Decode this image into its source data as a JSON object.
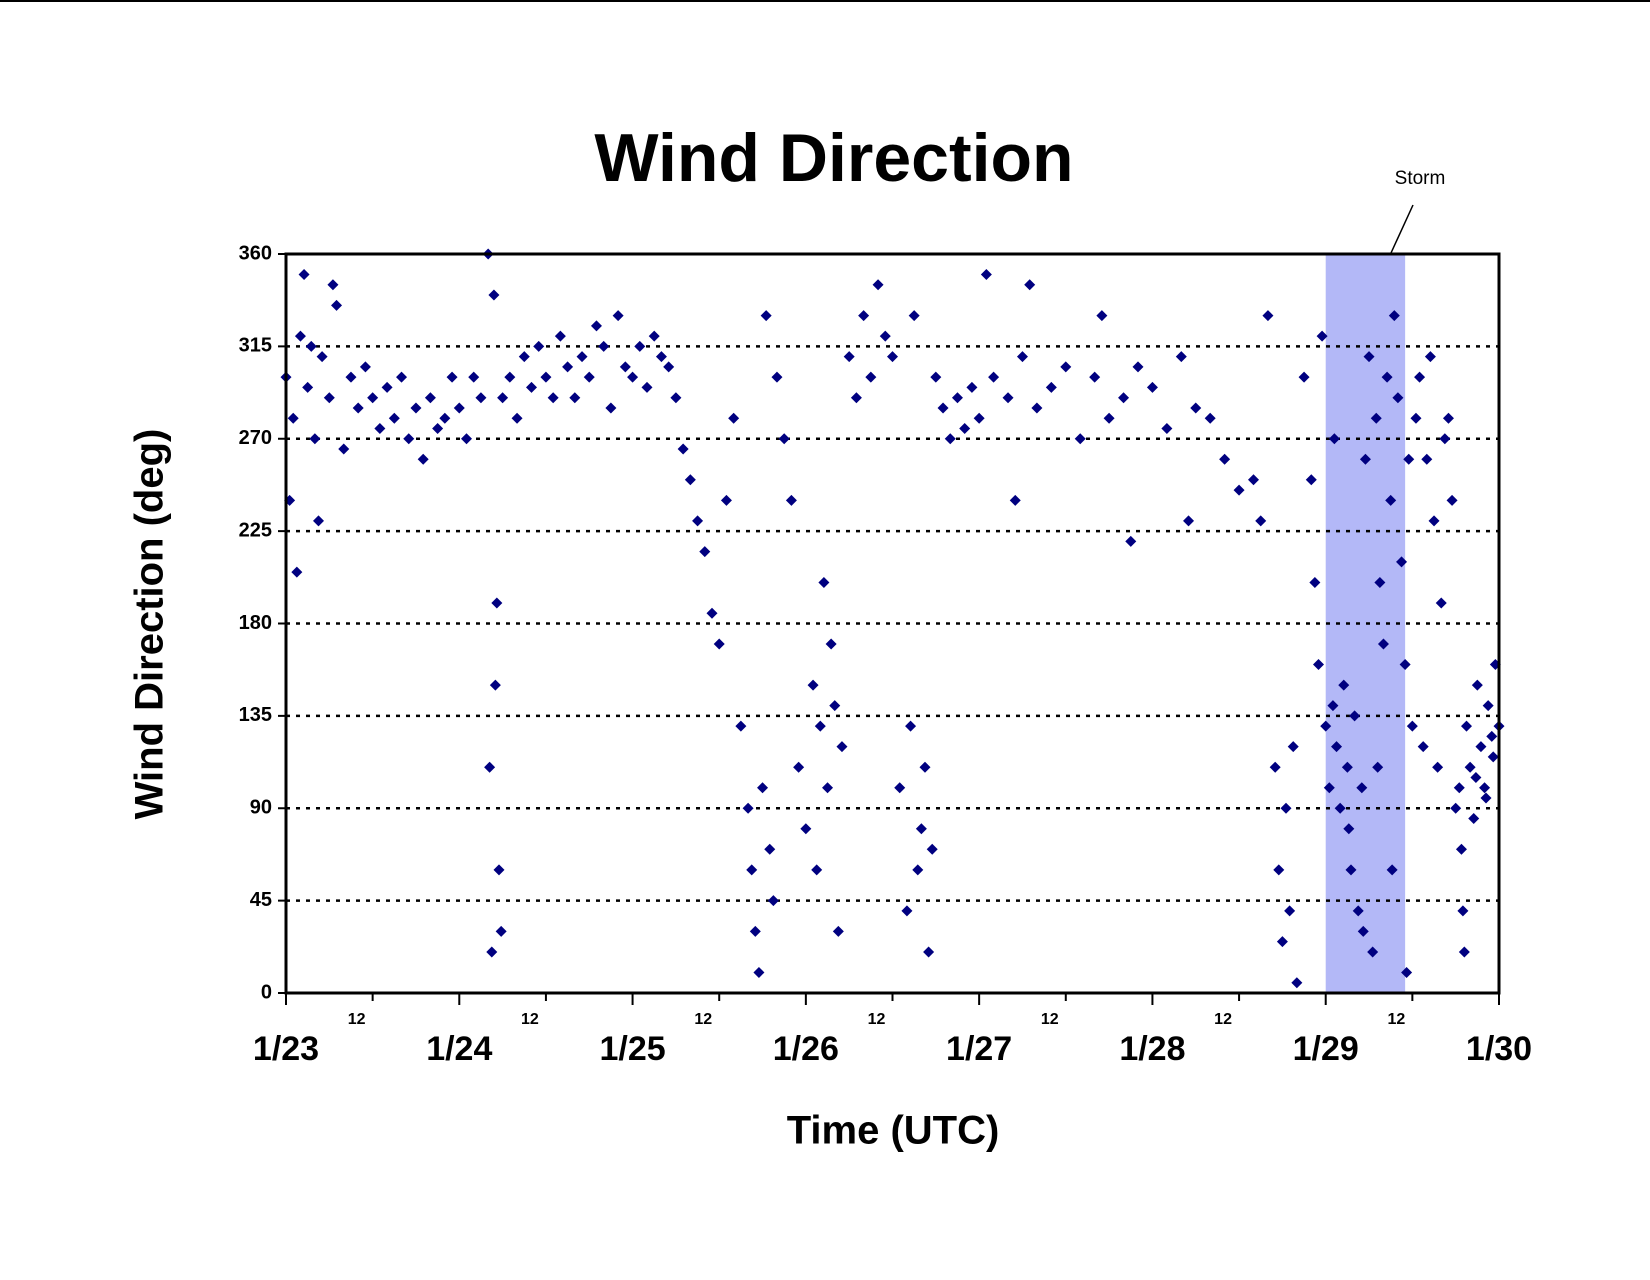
{
  "chart_data": {
    "type": "scatter",
    "title": "Wind Direction",
    "x_label": "Time (UTC)",
    "y_label": "Wind Direction (deg)",
    "color": "#000080",
    "marker": "diamond",
    "grid": true,
    "xlim": [
      0,
      168
    ],
    "ylim": [
      0,
      360
    ],
    "yticks": [
      0,
      45,
      90,
      135,
      180,
      225,
      270,
      315,
      360
    ],
    "xticks": [
      {
        "value": 0,
        "label": "1/23"
      },
      12,
      {
        "value": 24,
        "label": "1/24"
      },
      {
        "value": 36,
        "label": "12"
      },
      {
        "value": 48,
        "label": "1/25"
      },
      {
        "value": 60,
        "label": "12"
      },
      {
        "value": 72,
        "label": "1/26"
      },
      {
        "value": 84,
        "label": "12"
      },
      {
        "value": 96,
        "label": "1/27"
      },
      {
        "value": 108,
        "label": "12"
      },
      {
        "value": 120,
        "label": "1/28"
      },
      {
        "value": 132,
        "label": "12"
      },
      {
        "value": 144,
        "label": "1/29"
      },
      {
        "value": 156,
        "label": "12"
      },
      {
        "value": 168,
        "label": "1/30"
      }
    ],
    "storm": {
      "label": "Storm",
      "xrange": [
        144,
        155
      ],
      "color": "#b3b8f7"
    },
    "x": [
      0,
      1,
      2,
      3,
      4,
      5,
      6,
      7,
      8,
      9,
      10,
      11,
      12,
      13,
      14,
      15,
      16,
      17,
      18,
      19,
      20,
      21,
      22,
      23,
      0.5,
      2.5,
      4.5,
      6.5,
      1.5,
      3.5,
      24,
      25,
      26,
      27,
      28,
      28.5,
      29,
      29.5,
      28.2,
      29.2,
      28.8,
      29.8,
      30,
      31,
      32,
      33,
      34,
      35,
      36,
      37,
      38,
      39,
      40,
      41,
      42,
      43,
      44,
      45,
      46,
      47,
      48,
      49,
      50,
      51,
      52,
      53,
      54,
      55,
      56,
      57,
      58,
      59,
      60,
      61,
      62,
      63,
      64,
      64.5,
      65,
      65.5,
      66,
      66.5,
      67,
      67.5,
      68,
      69,
      70,
      71,
      72,
      73,
      73.5,
      74,
      74.5,
      75,
      75.5,
      76,
      76.5,
      77,
      78,
      79,
      80,
      81,
      82,
      83,
      84,
      85,
      86,
      87,
      88,
      89,
      86.5,
      87.5,
      88.5,
      89.5,
      90,
      91,
      92,
      93,
      94,
      95,
      96,
      98,
      100,
      102,
      104,
      106,
      108,
      110,
      112,
      114,
      116,
      118,
      120,
      122,
      124,
      126,
      128,
      130,
      132,
      134,
      135,
      136,
      137,
      137.5,
      138,
      138.5,
      139,
      139.5,
      140,
      141,
      142,
      142.5,
      143,
      143.5,
      101,
      113,
      97,
      125,
      103,
      117,
      144,
      144.5,
      145,
      145.5,
      146,
      146.5,
      147,
      147.5,
      148,
      148.5,
      149,
      149.5,
      150,
      150.5,
      151,
      151.5,
      152,
      152.5,
      153,
      153.5,
      154,
      154.5,
      155,
      155.5,
      145.2,
      147.2,
      149.2,
      151.2,
      153.2,
      155.2,
      156,
      156.5,
      157,
      157.5,
      158,
      158.5,
      159,
      159.5,
      160,
      161,
      162,
      162.5,
      163,
      163.5,
      164,
      164.5,
      165,
      165.5,
      166,
      166.5,
      167,
      167.5,
      168,
      160.5,
      161.5,
      163.2,
      164.8,
      166.2,
      167.2,
      162.8
    ],
    "values": [
      300,
      280,
      320,
      295,
      270,
      310,
      290,
      335,
      265,
      300,
      285,
      305,
      290,
      275,
      295,
      280,
      300,
      270,
      285,
      260,
      290,
      275,
      280,
      300,
      240,
      350,
      230,
      345,
      205,
      315,
      285,
      270,
      300,
      290,
      360,
      20,
      150,
      60,
      110,
      190,
      340,
      30,
      290,
      300,
      280,
      310,
      295,
      315,
      300,
      290,
      320,
      305,
      290,
      310,
      300,
      325,
      315,
      285,
      330,
      305,
      300,
      315,
      295,
      320,
      310,
      305,
      290,
      265,
      250,
      230,
      215,
      185,
      170,
      240,
      280,
      130,
      90,
      60,
      30,
      10,
      100,
      330,
      70,
      45,
      300,
      270,
      240,
      110,
      80,
      150,
      60,
      130,
      200,
      100,
      170,
      140,
      30,
      120,
      310,
      290,
      330,
      300,
      345,
      320,
      310,
      100,
      40,
      330,
      80,
      20,
      130,
      60,
      110,
      70,
      300,
      285,
      270,
      290,
      275,
      295,
      280,
      300,
      290,
      310,
      285,
      295,
      305,
      270,
      300,
      280,
      290,
      305,
      295,
      275,
      310,
      285,
      280,
      260,
      245,
      250,
      230,
      330,
      110,
      60,
      25,
      90,
      40,
      120,
      5,
      300,
      250,
      200,
      160,
      320,
      240,
      330,
      350,
      230,
      345,
      220,
      130,
      100,
      140,
      120,
      90,
      150,
      110,
      60,
      135,
      40,
      100,
      260,
      310,
      20,
      280,
      200,
      170,
      300,
      240,
      330,
      290,
      210,
      160,
      260,
      270,
      80,
      30,
      110,
      60,
      10,
      130,
      280,
      300,
      120,
      260,
      310,
      230,
      110,
      190,
      280,
      90,
      100,
      40,
      130,
      110,
      85,
      150,
      120,
      100,
      140,
      125,
      160,
      130,
      270,
      240,
      20,
      105,
      95,
      115,
      70
    ]
  }
}
